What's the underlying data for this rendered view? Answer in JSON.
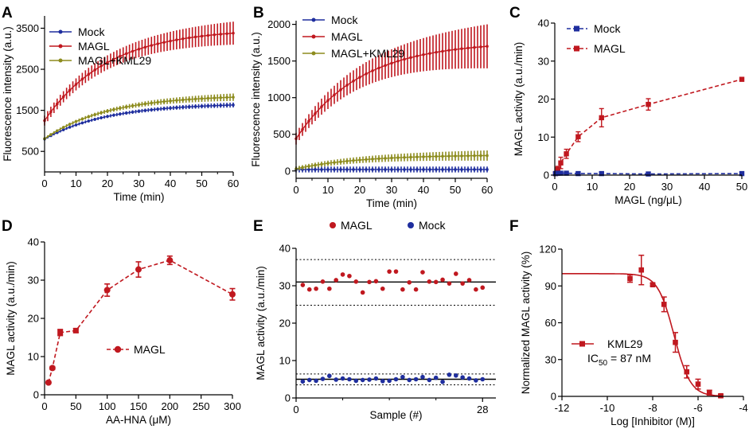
{
  "colors": {
    "mock": "#1f2e9e",
    "magl": "#c0181f",
    "kml": "#8d8c1e",
    "axis": "#000000",
    "fit": "#c0181f"
  },
  "chart_data": [
    {
      "panel": "A",
      "type": "line",
      "xlabel": "Time (min)",
      "ylabel": "Fluorescence intensity (a.u.)",
      "xlim": [
        0,
        60
      ],
      "ylim": [
        0,
        3800
      ],
      "xticks": [
        0,
        10,
        20,
        30,
        40,
        50,
        60
      ],
      "yticks": [
        500,
        1500,
        2500,
        3500
      ],
      "legend": [
        "Mock",
        "MAGL",
        "MAGL+KML29"
      ],
      "series": [
        {
          "name": "Mock",
          "start": 800,
          "end": 1630,
          "err_start": 30,
          "err_end": 60
        },
        {
          "name": "MAGL",
          "start": 1250,
          "end": 3380,
          "err_start": 120,
          "err_end": 280
        },
        {
          "name": "MAGL+KML29",
          "start": 810,
          "end": 1820,
          "err_start": 30,
          "err_end": 90
        }
      ]
    },
    {
      "panel": "B",
      "type": "line",
      "xlabel": "Time (min)",
      "ylabel": "Fluorescence intensity (a.u.)",
      "xlim": [
        0,
        60
      ],
      "ylim": [
        -100,
        2050
      ],
      "xticks": [
        0,
        10,
        20,
        30,
        40,
        50,
        60
      ],
      "yticks": [
        0,
        500,
        1000,
        1500,
        2000
      ],
      "legend": [
        "Mock",
        "MAGL",
        "MAGL+KML29"
      ],
      "series": [
        {
          "name": "Mock",
          "start": 20,
          "end": 20,
          "err_start": 40,
          "err_end": 40
        },
        {
          "name": "MAGL",
          "start": 440,
          "end": 1700,
          "err_start": 80,
          "err_end": 300
        },
        {
          "name": "MAGL+KML29",
          "start": 30,
          "end": 210,
          "err_start": 30,
          "err_end": 70
        }
      ]
    },
    {
      "panel": "C",
      "type": "scatter",
      "xlabel": "MAGL (ng/μL)",
      "ylabel": "MAGL activity (a.u./min)",
      "xlim": [
        0,
        50
      ],
      "ylim": [
        0,
        40
      ],
      "xticks": [
        0,
        10,
        20,
        30,
        40,
        50
      ],
      "yticks": [
        0,
        10,
        20,
        30,
        40
      ],
      "legend": [
        "Mock",
        "MAGL"
      ],
      "series": [
        {
          "name": "Mock",
          "x": [
            0.2,
            0.8,
            1.6,
            3.1,
            6.25,
            12.5,
            25,
            50
          ],
          "y": [
            0.4,
            0.5,
            0.5,
            0.5,
            0.4,
            0.4,
            0.3,
            0.4
          ],
          "err": [
            0.3,
            0.3,
            0.3,
            0.3,
            0.3,
            0.3,
            0.3,
            0.3
          ]
        },
        {
          "name": "MAGL",
          "x": [
            0.2,
            0.8,
            1.6,
            3.1,
            6.25,
            12.5,
            25,
            50
          ],
          "y": [
            0.4,
            1.5,
            3.2,
            5.6,
            10.1,
            15.1,
            18.6,
            25.2
          ],
          "err": [
            0.3,
            0.8,
            1.5,
            1.2,
            1.3,
            2.4,
            1.5,
            0.4
          ]
        }
      ]
    },
    {
      "panel": "D",
      "type": "scatter",
      "xlabel": "AA-HNA (μM)",
      "ylabel": "MAGL activity (a.u./min)",
      "xlim": [
        0,
        300
      ],
      "ylim": [
        0,
        40
      ],
      "xticks": [
        0,
        50,
        100,
        150,
        200,
        250,
        300
      ],
      "yticks": [
        0,
        10,
        20,
        30,
        40
      ],
      "legend": [
        "MAGL"
      ],
      "series": [
        {
          "name": "MAGL",
          "x": [
            6.25,
            12.5,
            25,
            50,
            100,
            150,
            200,
            300
          ],
          "y": [
            3.2,
            7.0,
            16.3,
            16.8,
            27.4,
            32.8,
            35.2,
            26.3
          ],
          "err": [
            0.3,
            0.4,
            0.8,
            0.5,
            1.6,
            2.0,
            1.1,
            1.5
          ]
        }
      ]
    },
    {
      "panel": "E",
      "type": "scatter",
      "xlabel": "Sample (#)",
      "ylabel": "MAGL activity (a.u./min)",
      "xlim": [
        0,
        30
      ],
      "ylim": [
        0,
        40
      ],
      "xticks": [
        0,
        28
      ],
      "yticks": [
        0,
        10,
        20,
        30,
        40
      ],
      "legend": [
        "MAGL",
        "Mock"
      ],
      "reference_lines": {
        "magl_mean": 31,
        "magl_upper": 37,
        "magl_lower": 24.8,
        "mock_mean": 5,
        "mock_upper": 6.4,
        "mock_lower": 3.5
      },
      "series": [
        {
          "name": "MAGL",
          "x": [
            1,
            2,
            3,
            4,
            5,
            6,
            7,
            8,
            9,
            10,
            11,
            12,
            13,
            14,
            15,
            16,
            17,
            18,
            19,
            20,
            21,
            22,
            23,
            24,
            25,
            26,
            27,
            28
          ],
          "y": [
            30.2,
            29.0,
            29.2,
            31.1,
            29.2,
            31.5,
            33.0,
            32.6,
            31.1,
            28.2,
            31.0,
            31.2,
            29.2,
            33.8,
            33.8,
            29.0,
            30.9,
            29.0,
            33.6,
            31.1,
            31.0,
            31.6,
            30.6,
            33.2,
            30.6,
            31.5,
            29.0,
            29.5
          ]
        },
        {
          "name": "Mock",
          "x": [
            1,
            2,
            3,
            4,
            5,
            6,
            7,
            8,
            9,
            10,
            11,
            12,
            13,
            14,
            15,
            16,
            17,
            18,
            19,
            20,
            21,
            22,
            23,
            24,
            25,
            26,
            27,
            28
          ],
          "y": [
            4.4,
            4.8,
            4.6,
            5.1,
            5.9,
            4.9,
            5.2,
            5.0,
            4.6,
            4.8,
            4.9,
            5.2,
            4.5,
            4.6,
            5.0,
            5.6,
            4.8,
            5.0,
            5.6,
            4.8,
            5.4,
            4.3,
            6.2,
            6.0,
            5.5,
            5.2,
            4.7,
            5.0
          ]
        }
      ]
    },
    {
      "panel": "F",
      "type": "scatter",
      "xlabel": "Log [Inhibitor (M)]",
      "ylabel": "Normalized MAGL activity (%)",
      "xlim": [
        -12,
        -4
      ],
      "ylim": [
        0,
        120
      ],
      "xticks": [
        -12,
        -10,
        -8,
        -6,
        -4
      ],
      "yticks": [
        0,
        30,
        60,
        90,
        120
      ],
      "legend": [
        "KML29"
      ],
      "annotation_prefix": "IC",
      "annotation_sub": "50",
      "annotation_value": " = 87 nM",
      "fit": {
        "top": 100,
        "bottom": 0,
        "log_ic50": -7.06,
        "hill": 1.2
      },
      "series": [
        {
          "name": "KML29",
          "x": [
            -9,
            -8.5,
            -8,
            -7.5,
            -7,
            -6.5,
            -6,
            -5.5,
            -5
          ],
          "y": [
            96,
            103,
            91,
            75,
            44,
            20,
            10,
            3,
            0.5
          ],
          "err": [
            3,
            12,
            1,
            6,
            8,
            5,
            4,
            2,
            1
          ]
        }
      ]
    }
  ]
}
